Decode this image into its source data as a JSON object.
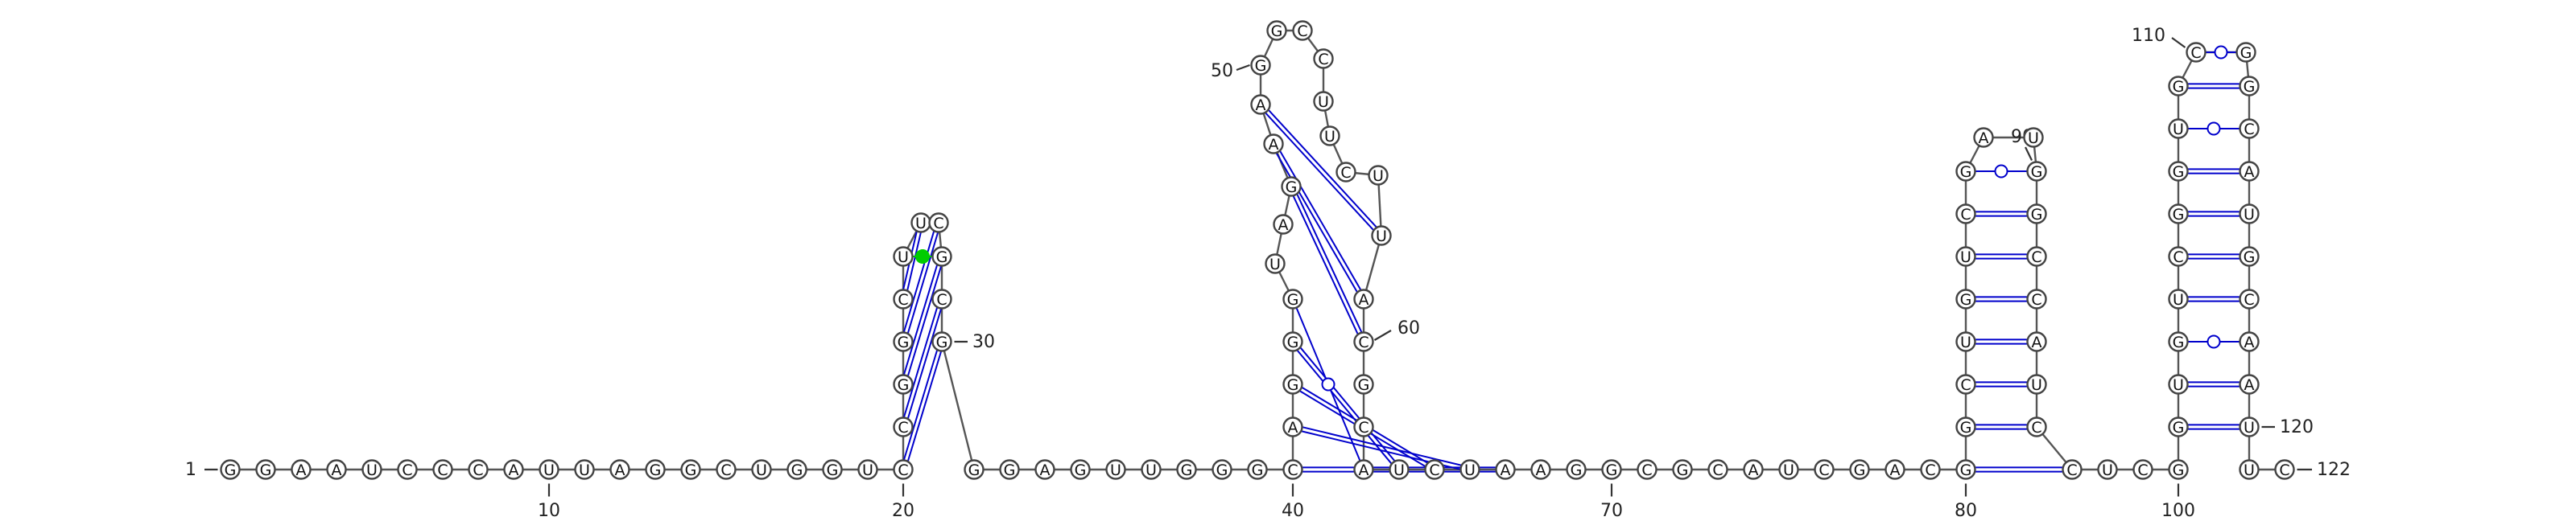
{
  "diagram": {
    "type": "rna-secondary-structure",
    "sequence": "GGAAUCCCAUUAGGCUGGUCCGGCUUCGCGGGAGUUGGGCAGGGUAGAAGGCCUUCUUACGCAUCUAAGGCGCAUCGACGGCUGUCGAUGGCCAUCCUCGGUGUCGGUGCGGCAUGCAAUUC",
    "length": 122,
    "colors": {
      "backbone": "#555555",
      "canonical_pair": "#0000cc",
      "wobble_pair": "#0000cc",
      "noncanonical_pair": "#00cc00",
      "circle_fill": "#ffffff",
      "circle_stroke": "#444444"
    },
    "position_labels": [
      {
        "pos": 1,
        "text": "1"
      },
      {
        "pos": 10,
        "text": "10"
      },
      {
        "pos": 20,
        "text": "20"
      },
      {
        "pos": 30,
        "text": "30"
      },
      {
        "pos": 40,
        "text": "40"
      },
      {
        "pos": 50,
        "text": "50"
      },
      {
        "pos": 60,
        "text": "60"
      },
      {
        "pos": 70,
        "text": "70"
      },
      {
        "pos": 80,
        "text": "80"
      },
      {
        "pos": 90,
        "text": "90"
      },
      {
        "pos": 100,
        "text": "100"
      },
      {
        "pos": 110,
        "text": "110"
      },
      {
        "pos": 120,
        "text": "120"
      },
      {
        "pos": 122,
        "text": "122"
      }
    ],
    "pairs": [
      {
        "i": 20,
        "j": 30,
        "kind": "canonical"
      },
      {
        "i": 21,
        "j": 29,
        "kind": "canonical"
      },
      {
        "i": 22,
        "j": 28,
        "kind": "canonical"
      },
      {
        "i": 23,
        "j": 27,
        "kind": "canonical"
      },
      {
        "i": 24,
        "j": 26,
        "kind": "canonical"
      },
      {
        "i": 25,
        "j": 28,
        "kind": "noncanonical"
      },
      {
        "i": 40,
        "j": 67,
        "kind": "canonical"
      },
      {
        "i": 41,
        "j": 66,
        "kind": "canonical"
      },
      {
        "i": 42,
        "j": 65,
        "kind": "canonical"
      },
      {
        "i": 43,
        "j": 64,
        "kind": "canonical"
      },
      {
        "i": 44,
        "j": 63,
        "kind": "wobble"
      },
      {
        "i": 47,
        "j": 60,
        "kind": "canonical"
      },
      {
        "i": 48,
        "j": 59,
        "kind": "canonical"
      },
      {
        "i": 49,
        "j": 58,
        "kind": "canonical"
      },
      {
        "i": 80,
        "j": 97,
        "kind": "canonical"
      },
      {
        "i": 81,
        "j": 96,
        "kind": "canonical"
      },
      {
        "i": 82,
        "j": 95,
        "kind": "canonical"
      },
      {
        "i": 83,
        "j": 94,
        "kind": "canonical"
      },
      {
        "i": 84,
        "j": 93,
        "kind": "canonical"
      },
      {
        "i": 85,
        "j": 92,
        "kind": "canonical"
      },
      {
        "i": 86,
        "j": 91,
        "kind": "canonical"
      },
      {
        "i": 87,
        "j": 90,
        "kind": "wobble"
      },
      {
        "i": 101,
        "j": 120,
        "kind": "canonical"
      },
      {
        "i": 102,
        "j": 119,
        "kind": "canonical"
      },
      {
        "i": 103,
        "j": 118,
        "kind": "wobble"
      },
      {
        "i": 104,
        "j": 117,
        "kind": "canonical"
      },
      {
        "i": 105,
        "j": 116,
        "kind": "canonical"
      },
      {
        "i": 106,
        "j": 115,
        "kind": "canonical"
      },
      {
        "i": 107,
        "j": 114,
        "kind": "canonical"
      },
      {
        "i": 108,
        "j": 113,
        "kind": "wobble"
      },
      {
        "i": 109,
        "j": 112,
        "kind": "canonical"
      },
      {
        "i": 110,
        "j": 111,
        "kind": "wobble"
      }
    ]
  }
}
